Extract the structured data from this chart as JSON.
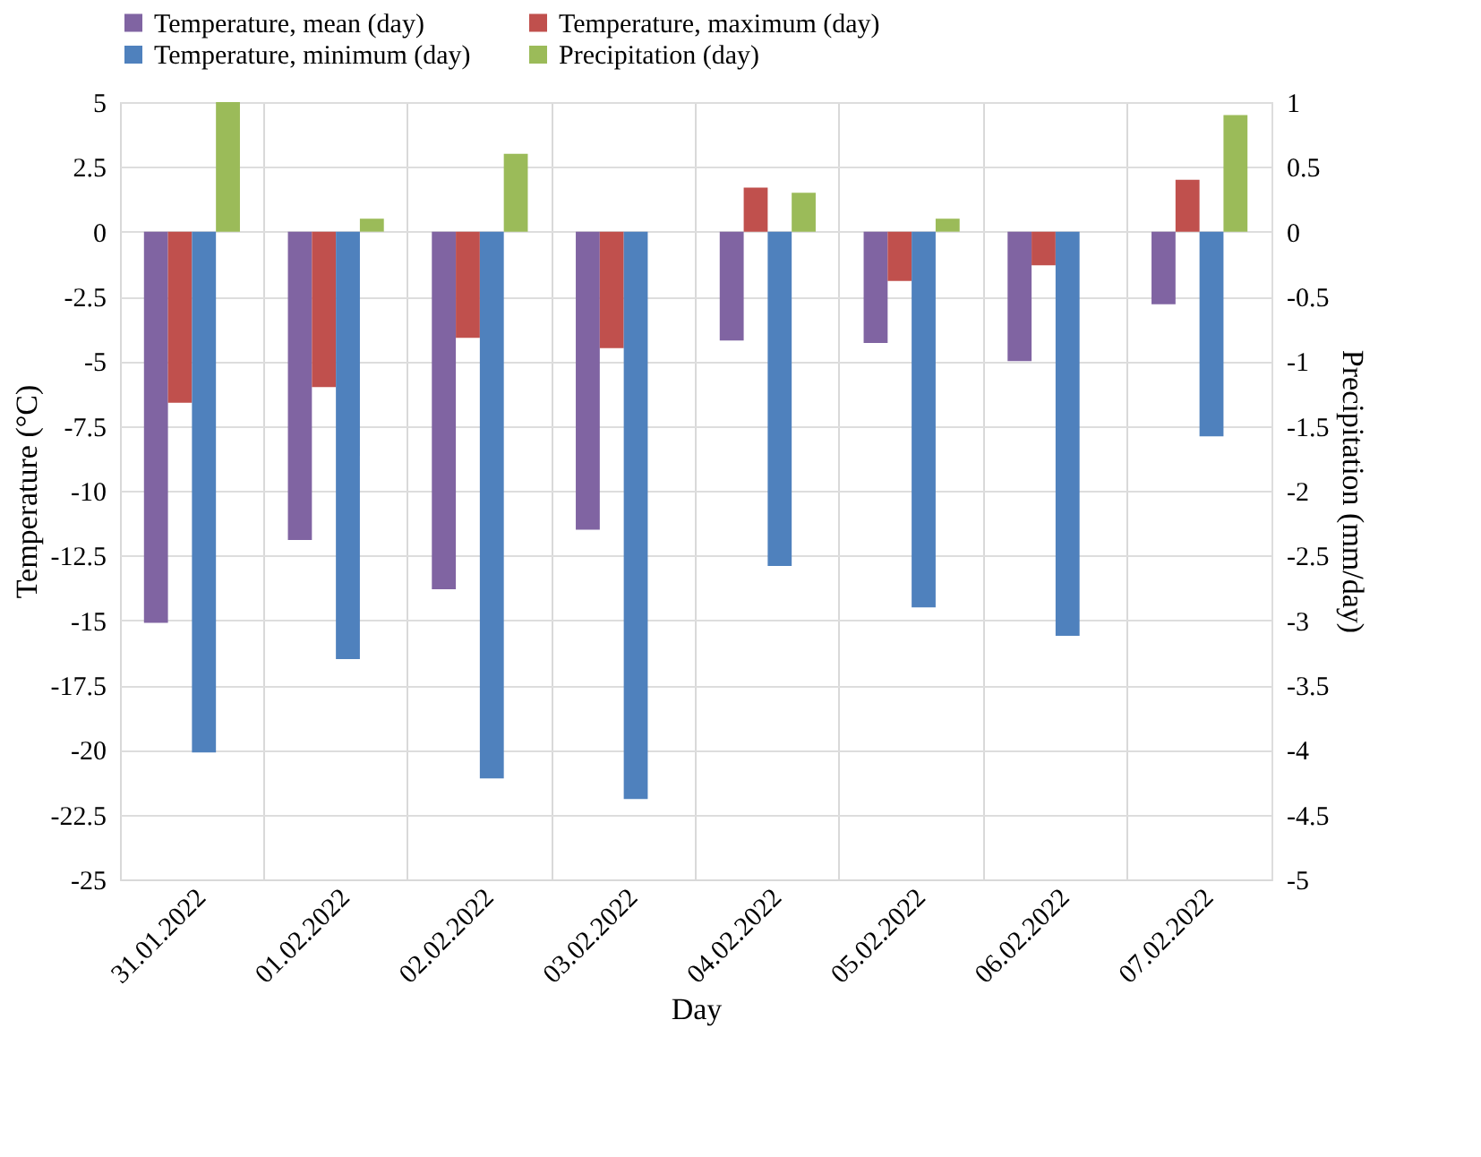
{
  "chart_data": {
    "type": "bar",
    "xlabel": "Day",
    "ylabel": "Temperature (°C)",
    "y2label": "Precipitation (mm/day)",
    "categories": [
      "31.01.2022",
      "01.02.2022",
      "02.02.2022",
      "03.02.2022",
      "04.02.2022",
      "05.02.2022",
      "06.02.2022",
      "07.02.2022"
    ],
    "series": [
      {
        "name": "Temperature, mean (day)",
        "color": "#8064a2",
        "values": [
          -15.1,
          -11.9,
          -13.8,
          -11.5,
          -4.2,
          -4.3,
          -5.0,
          -2.8
        ]
      },
      {
        "name": "Temperature, maximum (day)",
        "color": "#c0504d",
        "values": [
          -6.6,
          -6.0,
          -4.1,
          -4.5,
          1.7,
          -1.9,
          -1.3,
          2.0
        ]
      },
      {
        "name": "Temperature, minimum (day)",
        "color": "#4f81bd",
        "values": [
          -20.1,
          -16.5,
          -21.1,
          -21.9,
          -12.9,
          -14.5,
          -15.6,
          -7.9
        ]
      },
      {
        "name": "Precipitation (day)",
        "color": "#9bbb59",
        "axis": "y2",
        "values": [
          1.0,
          0.1,
          0.6,
          0,
          0.3,
          0.1,
          0,
          0.9
        ]
      }
    ],
    "ylim": [
      -25,
      5
    ],
    "yticks": [
      -25,
      -22.5,
      -20,
      -17.5,
      -15,
      -12.5,
      -10,
      -7.5,
      -5,
      -2.5,
      0,
      2.5,
      5
    ],
    "y2lim": [
      -5,
      1
    ],
    "y2ticks": [
      -5,
      -4.5,
      -4,
      -3.5,
      -3,
      -2.5,
      -2,
      -1.5,
      -1,
      -0.5,
      0,
      0.5,
      1
    ],
    "grid": true,
    "legend": "top"
  }
}
